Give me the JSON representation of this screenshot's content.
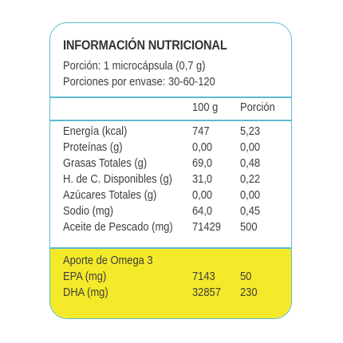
{
  "label": {
    "title": "INFORMACIÓN NUTRICIONAL",
    "portion": "Porción: 1 microcápsula (0,7 g)",
    "servings": "Porciones por envase: 30-60-120",
    "columns": {
      "per100": "100 g",
      "perPortion": "Porción"
    },
    "rows": [
      {
        "name": "Energía (kcal)",
        "per100": "747",
        "perPortion": "5,23"
      },
      {
        "name": "Proteínas (g)",
        "per100": "0,00",
        "perPortion": "0,00"
      },
      {
        "name": "Grasas Totales (g)",
        "per100": "69,0",
        "perPortion": "0,48"
      },
      {
        "name": "H. de C. Disponibles (g)",
        "per100": "31,0",
        "perPortion": "0,22"
      },
      {
        "name": "Azúcares Totales (g)",
        "per100": "0,00",
        "perPortion": "0,00"
      },
      {
        "name": "Sodio (mg)",
        "per100": "64,0",
        "perPortion": "0,45"
      },
      {
        "name": "Aceite de Pescado (mg)",
        "per100": "71429",
        "perPortion": "500"
      }
    ],
    "omega": {
      "heading": "Aporte de Omega 3",
      "rows": [
        {
          "name": "EPA (mg)",
          "per100": "7143",
          "perPortion": "50"
        },
        {
          "name": "DHA (mg)",
          "per100": "32857",
          "perPortion": "230"
        }
      ]
    },
    "colors": {
      "border": "#5bbbd0",
      "highlight": "#f4ea2a",
      "text": "#3d3d3d"
    }
  }
}
